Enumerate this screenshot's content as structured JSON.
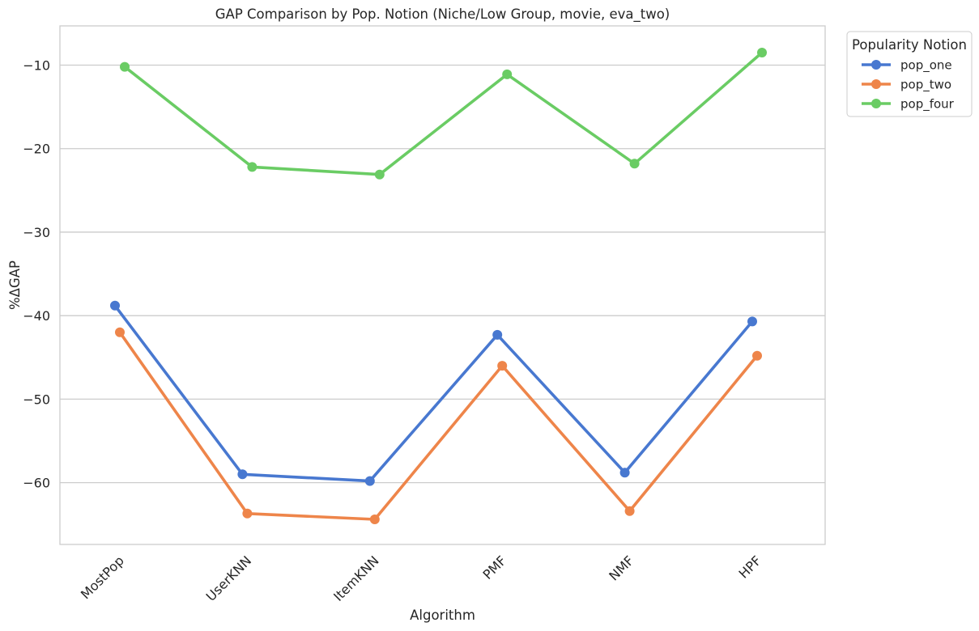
{
  "chart_data": {
    "type": "line",
    "title": "GAP Comparison by Pop. Notion (Niche/Low Group, movie, eva_two)",
    "xlabel": "Algorithm",
    "ylabel": "%ΔGAP",
    "categories": [
      "MostPop",
      "UserKNN",
      "ItemKNN",
      "PMF",
      "NMF",
      "HPF"
    ],
    "ylim": [
      -67.4,
      -5.3
    ],
    "yticks": [
      -10,
      -20,
      -30,
      -40,
      -50,
      -60
    ],
    "ytick_labels": [
      "−10",
      "−20",
      "−30",
      "−40",
      "−50",
      "−60"
    ],
    "grid": "horizontal",
    "legend": {
      "title": "Popularity Notion",
      "placement": "outside top-right"
    },
    "series": [
      {
        "name": "pop_one",
        "color": "#4878d0",
        "values": [
          -38.8,
          -59.0,
          -59.8,
          -42.3,
          -58.8,
          -40.7
        ]
      },
      {
        "name": "pop_two",
        "color": "#ee854a",
        "values": [
          -42.0,
          -63.7,
          -64.4,
          -46.0,
          -63.4,
          -44.8
        ]
      },
      {
        "name": "pop_four",
        "color": "#6acc64",
        "values": [
          -10.2,
          -22.2,
          -23.1,
          -11.1,
          -21.8,
          -8.5
        ]
      }
    ]
  }
}
